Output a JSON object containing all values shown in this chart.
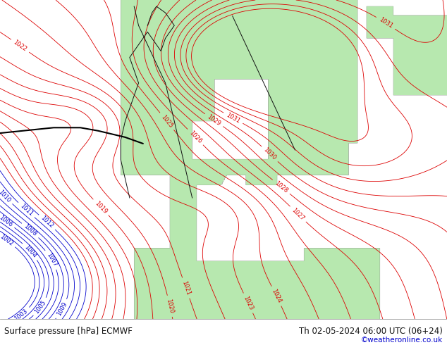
{
  "title_left": "Surface pressure [hPa] ECMWF",
  "title_right": "Th 02-05-2024 06:00 UTC (06+24)",
  "copyright": "©weatheronline.co.uk",
  "sea_color": "#e8e8e8",
  "land_color": "#b8e8b0",
  "border_color": "#111111",
  "isobar_color_red": "#dd0000",
  "isobar_color_blue": "#0000cc",
  "footer_bg": "#ffffff",
  "footer_text_color": "#111111",
  "copyright_color": "#0000cc",
  "fig_width": 6.34,
  "fig_height": 4.9,
  "dpi": 100,
  "pressure_levels": [
    1002,
    1003,
    1004,
    1005,
    1006,
    1007,
    1008,
    1009,
    1010,
    1011,
    1012,
    1013,
    1014,
    1015,
    1016,
    1017,
    1018,
    1019,
    1020,
    1021,
    1022,
    1023,
    1024,
    1025,
    1026,
    1027,
    1028,
    1029,
    1030,
    1031,
    1032,
    1033,
    1034
  ],
  "blue_threshold": 1013.0,
  "label_levels_red": [
    1019,
    1020,
    1021,
    1022,
    1023,
    1024,
    1025,
    1026,
    1027,
    1028,
    1029,
    1030,
    1031
  ],
  "label_levels_blue": [
    1002,
    1003,
    1004,
    1005,
    1006,
    1007,
    1008,
    1009,
    1010,
    1011,
    1012
  ]
}
